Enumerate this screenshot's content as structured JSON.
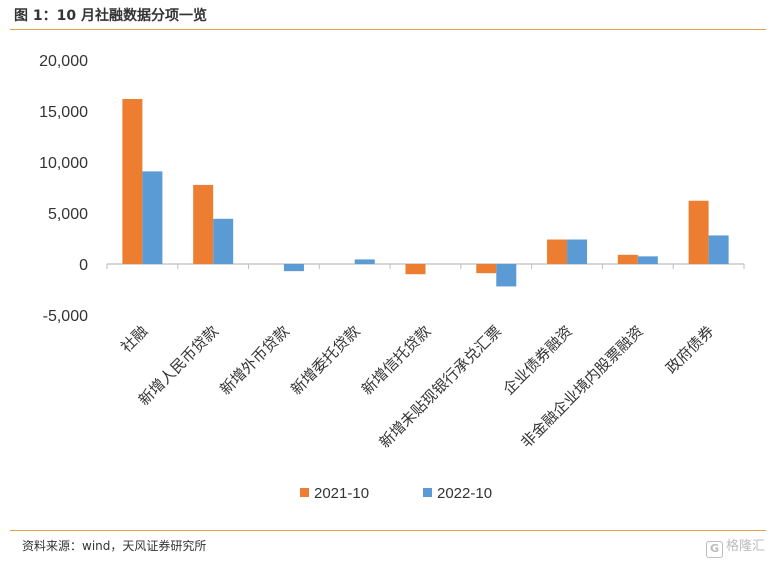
{
  "figure": {
    "title": "图 1：10 月社融数据分项一览",
    "source": "资料来源：wind，天风证券研究所",
    "watermark_text": "格隆汇",
    "watermark_icon": "G"
  },
  "colors": {
    "series_2021": "#ed7d31",
    "series_2022": "#5b9bd5",
    "rule": "#e4a44a",
    "axis": "#bfbfbf"
  },
  "chart_data": {
    "type": "bar",
    "title": "",
    "xlabel": "",
    "ylabel": "",
    "categories": [
      "社融",
      "新增人民币贷款",
      "新增外币贷款",
      "新增委托贷款",
      "新增信托贷款",
      "新增未贴现银行承兑汇票",
      "企业债券融资",
      "非金融企业境内股票融资",
      "政府债券"
    ],
    "series": [
      {
        "name": "2021-10",
        "color": "#ed7d31",
        "values": [
          16176,
          7752,
          0,
          0,
          -1000,
          -900,
          2400,
          900,
          6200
        ]
      },
      {
        "name": "2022-10",
        "color": "#5b9bd5",
        "values": [
          9079,
          4431,
          -700,
          450,
          0,
          -2200,
          2400,
          750,
          2800
        ]
      }
    ],
    "ylim": [
      -5000,
      20000
    ],
    "yticks": [
      -5000,
      0,
      5000,
      10000,
      15000,
      20000
    ],
    "ytick_labels": [
      "-5,000",
      "0",
      "5,000",
      "10,000",
      "15,000",
      "20,000"
    ],
    "grid": false,
    "legend_position": "bottom"
  }
}
